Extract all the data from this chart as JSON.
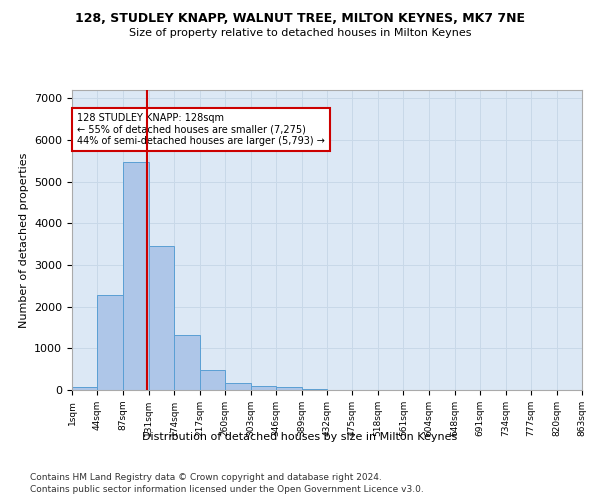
{
  "title": "128, STUDLEY KNAPP, WALNUT TREE, MILTON KEYNES, MK7 7NE",
  "subtitle": "Size of property relative to detached houses in Milton Keynes",
  "xlabel": "Distribution of detached houses by size in Milton Keynes",
  "ylabel": "Number of detached properties",
  "bar_color": "#aec6e8",
  "bar_edge_color": "#5a9fd4",
  "grid_color": "#c8d8e8",
  "bg_color": "#dce8f5",
  "vline_x": 128,
  "vline_color": "#cc0000",
  "annotation_text": "128 STUDLEY KNAPP: 128sqm\n← 55% of detached houses are smaller (7,275)\n44% of semi-detached houses are larger (5,793) →",
  "annotation_box_color": "#cc0000",
  "bin_edges": [
    1,
    44,
    87,
    131,
    174,
    217,
    260,
    303,
    346,
    389,
    432,
    475,
    518,
    561,
    604,
    648,
    691,
    734,
    777,
    820,
    863
  ],
  "bar_heights": [
    75,
    2275,
    5480,
    3450,
    1310,
    470,
    160,
    95,
    65,
    35,
    0,
    0,
    0,
    0,
    0,
    0,
    0,
    0,
    0,
    0
  ],
  "ylim": [
    0,
    7200
  ],
  "yticks": [
    0,
    1000,
    2000,
    3000,
    4000,
    5000,
    6000,
    7000
  ],
  "footnote_line1": "Contains HM Land Registry data © Crown copyright and database right 2024.",
  "footnote_line2": "Contains public sector information licensed under the Open Government Licence v3.0."
}
